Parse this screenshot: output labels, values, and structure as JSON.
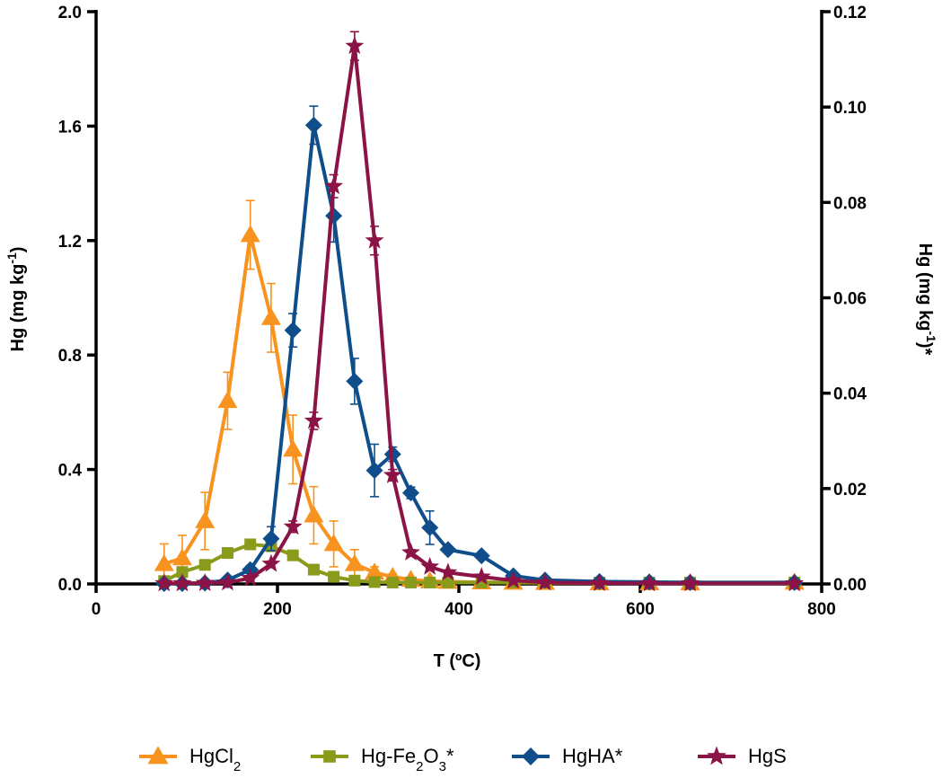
{
  "chart_data": {
    "type": "line",
    "xlabel": "T (ºC)",
    "ylabel_left": "Hg (mg kg-1)",
    "ylabel_right": "Hg (mg kg-1)*",
    "xlim": [
      0,
      800
    ],
    "ylim_left": [
      0,
      2.0
    ],
    "ylim_right": [
      0,
      0.12
    ],
    "x_ticks": [
      "0",
      "200",
      "400",
      "600",
      "800"
    ],
    "y_ticks_left": [
      "0.0",
      "0.4",
      "0.8",
      "1.2",
      "1.6",
      "2.0"
    ],
    "y_ticks_right": [
      "0.00",
      "0.02",
      "0.04",
      "0.06",
      "0.08",
      "0.10",
      "0.12"
    ],
    "grid": false,
    "legend_position": "bottom",
    "series": [
      {
        "name": "HgCl2",
        "axis": "left",
        "marker": "triangle",
        "color": "#F7931E",
        "x": [
          75,
          95,
          120,
          145,
          170,
          193,
          217,
          240,
          262,
          285,
          307,
          327,
          347,
          368,
          388,
          425,
          460,
          495,
          555,
          610,
          655,
          770
        ],
        "y": [
          0.07,
          0.09,
          0.22,
          0.64,
          1.22,
          0.93,
          0.47,
          0.24,
          0.14,
          0.07,
          0.04,
          0.025,
          0.015,
          0.01,
          0.008,
          0.006,
          0.005,
          0.004,
          0.003,
          0.003,
          0.003,
          0.005
        ],
        "err": [
          0.07,
          0.08,
          0.1,
          0.1,
          0.12,
          0.12,
          0.12,
          0.1,
          0.08,
          0.05,
          0.02,
          0.01,
          0.005,
          0.005,
          0.004,
          0.003,
          0.002,
          0.002,
          0.001,
          0.001,
          0.001,
          0.001
        ]
      },
      {
        "name": "Hg-Fe2O3*",
        "axis": "right",
        "marker": "square",
        "color": "#8A9A1B",
        "x": [
          75,
          95,
          120,
          145,
          170,
          193,
          217,
          240,
          262,
          285,
          307,
          327,
          347,
          368,
          388,
          425,
          460,
          495,
          555,
          610,
          655,
          770
        ],
        "y": [
          0.0006,
          0.0025,
          0.004,
          0.0065,
          0.0083,
          0.0079,
          0.006,
          0.003,
          0.0015,
          0.0007,
          0.0004,
          0.0003,
          0.0003,
          0.0003,
          0.0003,
          0.0003,
          0.0003,
          0.0003,
          0.0003,
          0.0003,
          0.0003,
          0.0003
        ]
      },
      {
        "name": "HgHA*",
        "axis": "right",
        "marker": "diamond",
        "color": "#104E8B",
        "x": [
          75,
          95,
          120,
          145,
          170,
          193,
          217,
          240,
          262,
          285,
          307,
          327,
          347,
          368,
          388,
          425,
          460,
          495,
          555,
          610,
          655,
          770
        ],
        "y": [
          0.0001,
          0.0001,
          0.0002,
          0.0008,
          0.003,
          0.0095,
          0.0532,
          0.0962,
          0.0772,
          0.0425,
          0.0238,
          0.0272,
          0.0191,
          0.0118,
          0.0072,
          0.0059,
          0.0017,
          0.0008,
          0.0005,
          0.0004,
          0.0003,
          0.0003
        ],
        "err": [
          0.0001,
          0.0001,
          0.0001,
          0.0002,
          0.0008,
          0.0025,
          0.0035,
          0.004,
          0.0055,
          0.0048,
          0.0055,
          0.0015,
          0.0012,
          0.0035,
          0.0005,
          0.0004,
          0.0004,
          0.0002,
          0.0001,
          0.0001,
          0.0001,
          0.0001
        ]
      },
      {
        "name": "HgS",
        "axis": "left",
        "marker": "star",
        "color": "#8B1346",
        "x": [
          75,
          95,
          120,
          145,
          170,
          193,
          217,
          240,
          262,
          285,
          307,
          327,
          347,
          368,
          388,
          425,
          460,
          495,
          555,
          610,
          655,
          770
        ],
        "y": [
          0.002,
          0.002,
          0.003,
          0.005,
          0.02,
          0.07,
          0.2,
          0.57,
          1.39,
          1.88,
          1.2,
          0.38,
          0.11,
          0.06,
          0.04,
          0.025,
          0.012,
          0.005,
          0.003,
          0.002,
          0.002,
          0.002
        ],
        "err": [
          0.001,
          0.001,
          0.001,
          0.002,
          0.005,
          0.01,
          0.02,
          0.03,
          0.04,
          0.05,
          0.05,
          0.02,
          0.01,
          0.005,
          0.005,
          0.003,
          0.002,
          0.001,
          0.001,
          0.001,
          0.001,
          0.001
        ]
      }
    ]
  }
}
